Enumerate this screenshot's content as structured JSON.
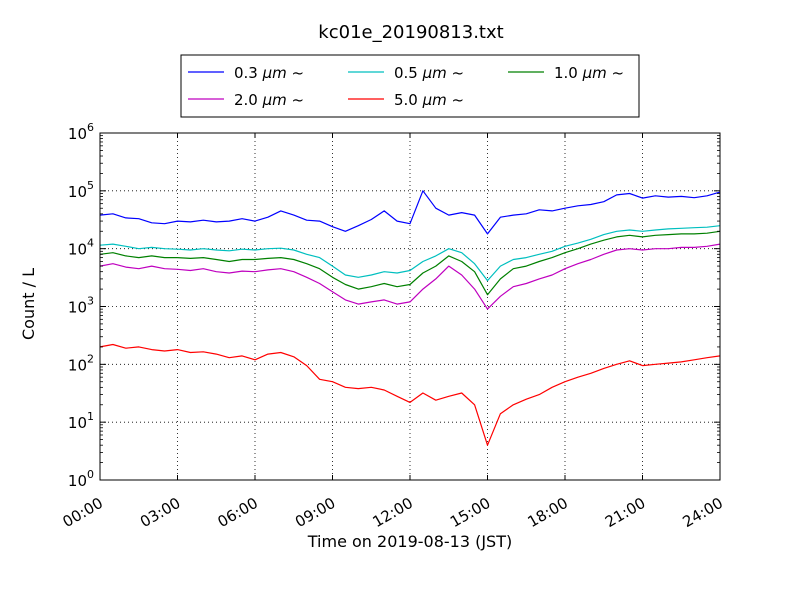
{
  "chart_data": {
    "type": "line",
    "title": "kc01e_20190813.txt",
    "xlabel": "Time on 2019-08-13 (JST)",
    "ylabel": "Count / L",
    "yscale": "log",
    "ylim": [
      1,
      1000000
    ],
    "xlim": [
      "00:00",
      "24:00"
    ],
    "grid": true,
    "legend_position": "top-center",
    "x_ticks": [
      "00:00",
      "03:00",
      "06:00",
      "09:00",
      "12:00",
      "15:00",
      "18:00",
      "21:00",
      "24:00"
    ],
    "y_ticks": [
      {
        "base": "10",
        "exp": "0"
      },
      {
        "base": "10",
        "exp": "1"
      },
      {
        "base": "10",
        "exp": "2"
      },
      {
        "base": "10",
        "exp": "3"
      },
      {
        "base": "10",
        "exp": "4"
      },
      {
        "base": "10",
        "exp": "5"
      },
      {
        "base": "10",
        "exp": "6"
      }
    ],
    "x_hours": [
      0,
      0.5,
      1,
      1.5,
      2,
      2.5,
      3,
      3.5,
      4,
      4.5,
      5,
      5.5,
      6,
      6.5,
      7,
      7.5,
      8,
      8.5,
      9,
      9.5,
      10,
      10.5,
      11,
      11.5,
      12,
      12.5,
      13,
      13.5,
      14,
      14.5,
      15,
      15.5,
      16,
      16.5,
      17,
      17.5,
      18,
      18.5,
      19,
      19.5,
      20,
      20.5,
      21,
      21.5,
      22,
      22.5,
      23,
      23.5,
      24
    ],
    "series": [
      {
        "name": "0.3 μm ~",
        "label_main": "0.3 ",
        "label_unit": "μm",
        "label_tail": " ~",
        "color": "#0000ff",
        "values": [
          38000,
          40000,
          34000,
          33000,
          28000,
          27000,
          30000,
          29000,
          31000,
          29000,
          30000,
          33000,
          30000,
          35000,
          45000,
          38000,
          31000,
          30000,
          24000,
          20000,
          25000,
          32000,
          45000,
          30000,
          27000,
          100000,
          50000,
          38000,
          42000,
          38000,
          18000,
          35000,
          38000,
          40000,
          47000,
          45000,
          50000,
          55000,
          58000,
          65000,
          85000,
          90000,
          75000,
          82000,
          78000,
          80000,
          76000,
          82000,
          95000
        ]
      },
      {
        "name": "0.5 μm ~",
        "label_main": "0.5 ",
        "label_unit": "μm",
        "label_tail": " ~",
        "color": "#00bfbf",
        "values": [
          11500,
          12000,
          11000,
          10000,
          10500,
          10000,
          9800,
          9500,
          10000,
          9500,
          9200,
          9800,
          9500,
          10000,
          10200,
          9500,
          8000,
          7000,
          5000,
          3500,
          3200,
          3500,
          4000,
          3800,
          4200,
          6000,
          7500,
          10000,
          8500,
          5500,
          2800,
          5000,
          6500,
          7000,
          8000,
          9000,
          11000,
          12500,
          14500,
          17500,
          20000,
          21000,
          20000,
          21000,
          22000,
          22500,
          23000,
          23500,
          25000
        ]
      },
      {
        "name": "1.0 μm ~",
        "label_main": "1.0 ",
        "label_unit": "μm",
        "label_tail": " ~",
        "color": "#008000",
        "values": [
          8000,
          8500,
          7500,
          7000,
          7500,
          7000,
          7000,
          6800,
          7000,
          6500,
          6000,
          6500,
          6500,
          6800,
          7000,
          6500,
          5500,
          4500,
          3200,
          2400,
          2000,
          2200,
          2500,
          2200,
          2400,
          3800,
          5000,
          7500,
          6000,
          4000,
          1600,
          3000,
          4500,
          5000,
          6000,
          7000,
          8500,
          10000,
          12000,
          14000,
          16000,
          17000,
          16000,
          17000,
          17500,
          18000,
          18000,
          18500,
          20000
        ]
      },
      {
        "name": "2.0 μm ~",
        "label_main": "2.0 ",
        "label_unit": "μm",
        "label_tail": " ~",
        "color": "#bf00bf",
        "values": [
          5000,
          5500,
          4800,
          4500,
          5000,
          4500,
          4400,
          4200,
          4500,
          4000,
          3800,
          4100,
          4000,
          4300,
          4500,
          4000,
          3200,
          2500,
          1800,
          1300,
          1100,
          1200,
          1300,
          1100,
          1200,
          2000,
          3000,
          5000,
          3500,
          2000,
          900,
          1500,
          2200,
          2500,
          3000,
          3500,
          4500,
          5500,
          6500,
          8000,
          9500,
          10000,
          9500,
          10000,
          10000,
          10500,
          10500,
          11000,
          12000
        ]
      },
      {
        "name": "5.0 μm ~",
        "label_main": "5.0 ",
        "label_unit": "μm",
        "label_tail": " ~",
        "color": "#ff0000",
        "values": [
          200,
          220,
          190,
          200,
          180,
          170,
          180,
          160,
          165,
          150,
          130,
          140,
          120,
          150,
          160,
          135,
          95,
          55,
          50,
          40,
          38,
          40,
          36,
          28,
          22,
          32,
          24,
          28,
          32,
          20,
          4,
          14,
          20,
          25,
          30,
          40,
          50,
          60,
          70,
          85,
          100,
          115,
          95,
          100,
          105,
          110,
          120,
          130,
          140
        ]
      }
    ]
  }
}
